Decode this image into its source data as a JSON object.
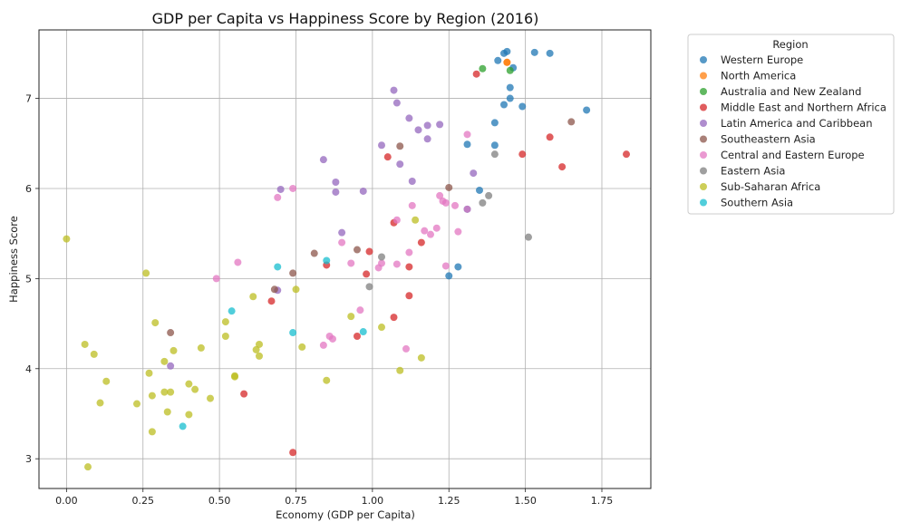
{
  "chart_data": {
    "type": "scatter",
    "title": "GDP per Capita vs Happiness Score by Region (2016)",
    "xlabel": "Economy (GDP per Capita)",
    "ylabel": "Happiness Score",
    "xlim": [
      -0.09,
      1.91
    ],
    "ylim": [
      2.67,
      7.76
    ],
    "xticks": [
      0.0,
      0.25,
      0.5,
      0.75,
      1.0,
      1.25,
      1.5,
      1.75
    ],
    "xtick_labels": [
      "0.00",
      "0.25",
      "0.50",
      "0.75",
      "1.00",
      "1.25",
      "1.50",
      "1.75"
    ],
    "yticks": [
      3,
      4,
      5,
      6,
      7
    ],
    "ytick_labels": [
      "3",
      "4",
      "5",
      "6",
      "7"
    ],
    "grid": true,
    "legend": {
      "title": "Region",
      "placement": "outside-right"
    },
    "series": [
      {
        "name": "Western Europe",
        "color": "#1f77b4",
        "points": [
          [
            1.44,
            7.52
          ],
          [
            1.53,
            7.51
          ],
          [
            1.58,
            7.5
          ],
          [
            1.43,
            7.5
          ],
          [
            1.41,
            7.42
          ],
          [
            1.46,
            7.34
          ],
          [
            1.45,
            7.12
          ],
          [
            1.45,
            7.0
          ],
          [
            1.43,
            6.93
          ],
          [
            1.49,
            6.91
          ],
          [
            1.7,
            6.87
          ],
          [
            1.4,
            6.73
          ],
          [
            1.31,
            6.49
          ],
          [
            1.4,
            6.48
          ],
          [
            1.35,
            5.98
          ],
          [
            1.31,
            5.77
          ],
          [
            1.28,
            5.13
          ],
          [
            1.25,
            5.03
          ]
        ]
      },
      {
        "name": "North America",
        "color": "#ff7f0e",
        "points": [
          [
            1.44,
            7.4
          ],
          [
            1.44,
            7.4
          ]
        ]
      },
      {
        "name": "Australia and New Zealand",
        "color": "#2ca02c",
        "points": [
          [
            1.36,
            7.33
          ],
          [
            1.45,
            7.31
          ]
        ]
      },
      {
        "name": "Middle East and Northern Africa",
        "color": "#d62728",
        "points": [
          [
            1.34,
            7.27
          ],
          [
            1.58,
            6.57
          ],
          [
            1.83,
            6.38
          ],
          [
            1.49,
            6.38
          ],
          [
            1.62,
            6.24
          ],
          [
            1.05,
            6.35
          ],
          [
            1.07,
            5.62
          ],
          [
            1.16,
            5.4
          ],
          [
            0.99,
            5.3
          ],
          [
            0.85,
            5.15
          ],
          [
            0.98,
            5.05
          ],
          [
            1.12,
            5.13
          ],
          [
            0.67,
            4.75
          ],
          [
            1.12,
            4.81
          ],
          [
            1.07,
            4.57
          ],
          [
            0.95,
            4.36
          ],
          [
            0.58,
            3.72
          ],
          [
            0.74,
            3.07
          ]
        ]
      },
      {
        "name": "Latin America and Caribbean",
        "color": "#9467bd",
        "points": [
          [
            1.07,
            7.09
          ],
          [
            1.08,
            6.95
          ],
          [
            1.12,
            6.78
          ],
          [
            1.18,
            6.7
          ],
          [
            1.22,
            6.71
          ],
          [
            1.03,
            6.48
          ],
          [
            1.15,
            6.65
          ],
          [
            1.18,
            6.55
          ],
          [
            1.09,
            6.27
          ],
          [
            0.84,
            6.32
          ],
          [
            1.33,
            6.17
          ],
          [
            1.13,
            6.08
          ],
          [
            0.88,
            6.07
          ],
          [
            0.7,
            5.99
          ],
          [
            0.88,
            5.96
          ],
          [
            0.97,
            5.97
          ],
          [
            0.9,
            5.51
          ],
          [
            0.34,
            4.03
          ],
          [
            0.69,
            4.87
          ]
        ]
      },
      {
        "name": "Southeastern Asia",
        "color": "#8c564b",
        "points": [
          [
            1.65,
            6.74
          ],
          [
            1.09,
            6.47
          ],
          [
            1.25,
            6.01
          ],
          [
            0.81,
            5.28
          ],
          [
            0.95,
            5.32
          ],
          [
            0.74,
            5.06
          ],
          [
            0.68,
            4.88
          ],
          [
            0.34,
            4.4
          ]
        ]
      },
      {
        "name": "Central and Eastern Europe",
        "color": "#e377c2",
        "points": [
          [
            1.31,
            6.6
          ],
          [
            1.22,
            5.92
          ],
          [
            1.23,
            5.86
          ],
          [
            1.24,
            5.84
          ],
          [
            1.27,
            5.81
          ],
          [
            1.31,
            5.77
          ],
          [
            1.13,
            5.81
          ],
          [
            1.08,
            5.65
          ],
          [
            1.17,
            5.53
          ],
          [
            1.19,
            5.49
          ],
          [
            1.21,
            5.56
          ],
          [
            1.28,
            5.52
          ],
          [
            0.9,
            5.4
          ],
          [
            1.12,
            5.29
          ],
          [
            0.93,
            5.17
          ],
          [
            1.08,
            5.16
          ],
          [
            1.03,
            5.17
          ],
          [
            1.02,
            5.12
          ],
          [
            1.24,
            5.14
          ],
          [
            0.56,
            5.18
          ],
          [
            0.49,
            5.0
          ],
          [
            0.96,
            4.65
          ],
          [
            0.86,
            4.36
          ],
          [
            0.87,
            4.33
          ],
          [
            0.84,
            4.26
          ],
          [
            1.11,
            4.22
          ],
          [
            0.69,
            5.9
          ],
          [
            0.74,
            6.0
          ]
        ]
      },
      {
        "name": "Eastern Asia",
        "color": "#7f7f7f",
        "points": [
          [
            1.4,
            6.38
          ],
          [
            1.38,
            5.92
          ],
          [
            1.36,
            5.84
          ],
          [
            1.51,
            5.46
          ],
          [
            1.03,
            5.24
          ],
          [
            0.99,
            4.91
          ]
        ]
      },
      {
        "name": "Sub-Saharan Africa",
        "color": "#bcbd22",
        "points": [
          [
            0.0,
            5.44
          ],
          [
            1.14,
            5.65
          ],
          [
            0.26,
            5.06
          ],
          [
            0.75,
            4.88
          ],
          [
            0.61,
            4.8
          ],
          [
            0.52,
            4.52
          ],
          [
            0.29,
            4.51
          ],
          [
            0.93,
            4.58
          ],
          [
            1.03,
            4.46
          ],
          [
            0.52,
            4.36
          ],
          [
            0.06,
            4.27
          ],
          [
            0.63,
            4.27
          ],
          [
            0.77,
            4.24
          ],
          [
            0.44,
            4.23
          ],
          [
            0.35,
            4.2
          ],
          [
            0.62,
            4.21
          ],
          [
            0.09,
            4.16
          ],
          [
            0.63,
            4.14
          ],
          [
            1.16,
            4.12
          ],
          [
            0.32,
            4.08
          ],
          [
            1.09,
            3.98
          ],
          [
            0.27,
            3.95
          ],
          [
            0.55,
            3.92
          ],
          [
            0.55,
            3.91
          ],
          [
            0.85,
            3.87
          ],
          [
            0.13,
            3.86
          ],
          [
            0.4,
            3.83
          ],
          [
            0.42,
            3.77
          ],
          [
            0.32,
            3.74
          ],
          [
            0.34,
            3.74
          ],
          [
            0.28,
            3.7
          ],
          [
            0.47,
            3.67
          ],
          [
            0.11,
            3.62
          ],
          [
            0.23,
            3.61
          ],
          [
            0.33,
            3.52
          ],
          [
            0.4,
            3.49
          ],
          [
            0.28,
            3.3
          ],
          [
            0.07,
            2.91
          ]
        ]
      },
      {
        "name": "Southern Asia",
        "color": "#17becf",
        "points": [
          [
            0.69,
            5.13
          ],
          [
            0.85,
            5.2
          ],
          [
            0.54,
            4.64
          ],
          [
            0.74,
            4.4
          ],
          [
            0.97,
            4.41
          ],
          [
            0.38,
            3.36
          ]
        ]
      }
    ]
  }
}
